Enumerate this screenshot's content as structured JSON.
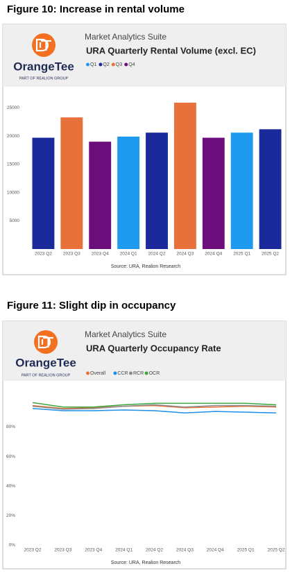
{
  "chart_data": [
    {
      "type": "bar",
      "figure_title": "Figure 10: Increase in rental volume",
      "brand": "OrangeTee",
      "brand_tagline": "PART OF REALION GROUP",
      "suite": "Market Analytics Suite",
      "title": "URA Quarterly Rental Volume (excl. EC)",
      "source": "Source: URA, Realion Research",
      "categories": [
        "2023 Q2",
        "2023 Q3",
        "2023 Q4",
        "2024 Q1",
        "2024 Q2",
        "2024 Q3",
        "2024 Q4",
        "2025 Q1",
        "2025 Q2"
      ],
      "series": [
        {
          "name": "Q1",
          "color": "#1e9bf0",
          "values": [
            null,
            null,
            null,
            19900,
            null,
            null,
            null,
            20600,
            null
          ]
        },
        {
          "name": "Q2",
          "color": "#1b2a9a",
          "values": [
            19700,
            null,
            null,
            null,
            20600,
            null,
            null,
            null,
            21200
          ]
        },
        {
          "name": "Q3",
          "color": "#e8703a",
          "values": [
            null,
            23300,
            null,
            null,
            null,
            25900,
            null,
            null,
            null
          ]
        },
        {
          "name": "Q4",
          "color": "#6b0e7c",
          "values": [
            null,
            null,
            19000,
            null,
            null,
            null,
            19700,
            null,
            null
          ]
        }
      ],
      "ylim": [
        0,
        27500
      ],
      "yticks": [
        5000,
        10000,
        15000,
        20000,
        25000
      ],
      "grid": false
    },
    {
      "type": "line",
      "figure_title": "Figure 11: Slight dip in occupancy",
      "brand": "OrangeTee",
      "brand_tagline": "PART OF REALION GROUP",
      "suite": "Market Analytics Suite",
      "title": "URA Quarterly Occupancy Rate",
      "source": "Source: URA, Realion Research",
      "categories": [
        "2023 Q2",
        "2023 Q3",
        "2023 Q4",
        "2024 Q1",
        "2024 Q2",
        "2024 Q3",
        "2024 Q4",
        "2025 Q1",
        "2025 Q2"
      ],
      "series": [
        {
          "name": "Overall",
          "color": "#e8703a",
          "values": [
            94.5,
            92.5,
            93,
            94,
            94.5,
            93,
            93.5,
            94,
            93.5
          ]
        },
        {
          "name": "CCR",
          "color": "#1e8fe8",
          "values": [
            92.5,
            91,
            91,
            91.5,
            91,
            89.5,
            90.5,
            90,
            89.5
          ]
        },
        {
          "name": "RCR",
          "color": "#8a8a8a",
          "values": [
            94,
            92,
            92.5,
            94,
            95,
            93.5,
            94.5,
            94.5,
            94
          ]
        },
        {
          "name": "OCR",
          "color": "#3aa83a",
          "values": [
            96.5,
            93.5,
            93.5,
            95,
            96,
            96,
            96,
            96,
            95
          ]
        }
      ],
      "ylim": [
        0,
        99
      ],
      "yticks": [
        {
          "value": 0,
          "label": "0%"
        },
        {
          "value": 20,
          "label": "20%"
        },
        {
          "value": 40,
          "label": "40%"
        },
        {
          "value": 60,
          "label": "60%"
        },
        {
          "value": 80,
          "label": "80%"
        }
      ],
      "grid": false
    }
  ]
}
